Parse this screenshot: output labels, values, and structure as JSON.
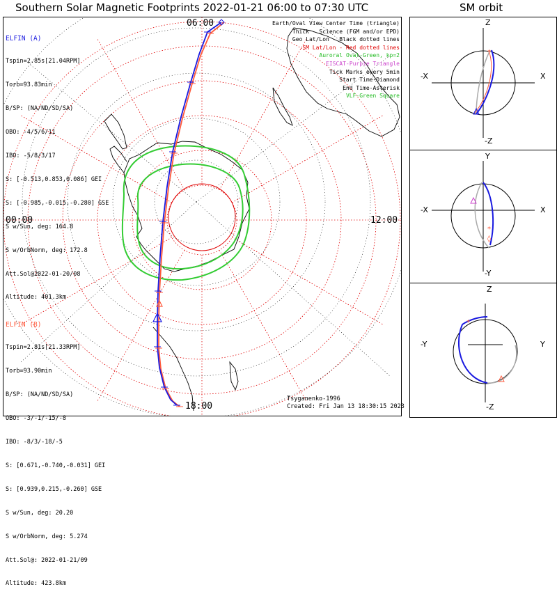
{
  "main_title": "Southern Solar Magnetic Footprints 2022-01-21 06:00 to 07:30 UTC",
  "orbit_title": "SM orbit",
  "elfin_a": {
    "name": "ELFIN (A)",
    "color": "#1a1ae0",
    "lines": [
      "Tspin=2.85s[21.04RPM]",
      "Torb=93.83min",
      "B/SP: (NA/ND/SD/SA)",
      "OBO: -4/5/6/11",
      "IBO: -5/8/3/17",
      "S: [-0.513,0.853,0.086] GEI",
      "S: [-0.985,-0.015,-0.280] GSE",
      "S w/Sun, deg: 164.8",
      "S w/OrbNorm, deg: 172.8",
      "Att.Sol@2022-01-20/08",
      "Altitude: 401.3km"
    ]
  },
  "elfin_b": {
    "name": "ELFIN (B)",
    "color": "#ff5a3c",
    "lines": [
      "Tspin=2.81s[21.33RPM]",
      "Torb=93.90min",
      "B/SP: (NA/ND/SD/SA)",
      "OBO: -3/-1/-15/-8",
      "IBO: -8/3/-18/-5",
      "S: [0.671,-0.740,-0.031] GEI",
      "S: [0.939,0.215,-0.260] GSE",
      "S w/Sun, deg: 20.20",
      "S w/OrbNorm, deg: 5.274",
      "Att.Sol@: 2022-01-21/09",
      "Altitude: 423.8km"
    ]
  },
  "legend": [
    {
      "text": "Earth/Oval View Center Time (triangle)",
      "color": "#000000"
    },
    {
      "text": "Thick - Science (FGM and/or EPD)",
      "color": "#000000"
    },
    {
      "text": "Geo Lat/Lon - Black dotted lines",
      "color": "#000000"
    },
    {
      "text": "SM Lat/Lon - Red dotted lines",
      "color": "#e00000"
    },
    {
      "text": "Auroral Oval-Green, kp=2",
      "color": "#22bb22"
    },
    {
      "text": "EISCAT-Purple Triangle",
      "color": "#cc44cc"
    },
    {
      "text": "Tick Marks every 5min",
      "color": "#000000"
    },
    {
      "text": "Start Time-Diamond",
      "color": "#000000"
    },
    {
      "text": "End Time-Asterisk",
      "color": "#000000"
    },
    {
      "text": "VLF-Green Square",
      "color": "#22bb22"
    }
  ],
  "clock_labels": {
    "top": "06:00",
    "left": "00:00",
    "right": "12:00",
    "bottom": "18:00"
  },
  "credit": [
    "Tsyganenko-1996",
    "Created: Fri Jan 13 18:30:15 2023"
  ],
  "orbit_panels": [
    {
      "top": "Z",
      "bottom": "-Z",
      "left": "-X",
      "right": "X"
    },
    {
      "top": "Y",
      "bottom": "-Y",
      "left": "-X",
      "right": "X"
    },
    {
      "top": "Z",
      "bottom": "-Z",
      "left": "-Y",
      "right": "Y"
    }
  ],
  "colors": {
    "sm_grid": "#e00000",
    "geo_grid": "#000000",
    "oval": "#33cc33",
    "track_a": "#1a1ae0",
    "track_b": "#ff5a3c",
    "orbit_gray": "#aaaaaa"
  }
}
